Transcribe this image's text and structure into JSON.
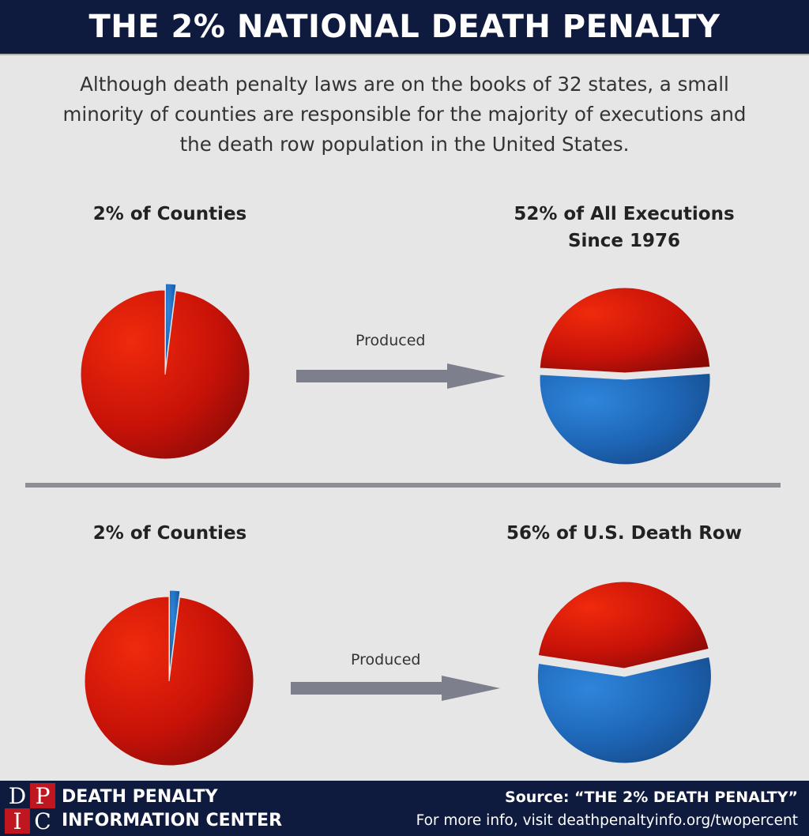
{
  "header": {
    "title": "THE 2% NATIONAL DEATH PENALTY"
  },
  "intro": {
    "line1": "Although death penalty laws are on the books of 32 states, a small",
    "line2": "minority of counties are responsible for the majority of executions and",
    "line3": "the death row population in the United States."
  },
  "arrow_label": "Produced",
  "colors": {
    "red": "#d8170a",
    "blue": "#1f6fc4",
    "arrow": "#7d7f8c",
    "header_bg": "#0f1a3f"
  },
  "chart_data": [
    {
      "type": "pie",
      "title": "2% of Counties",
      "series": [
        {
          "values": [
            2,
            98
          ]
        }
      ],
      "colors": [
        "#1f6fc4",
        "#d8170a"
      ],
      "exploded_slice": 0
    },
    {
      "type": "pie",
      "title_line1": "52% of All Executions",
      "title_line2": "Since 1976",
      "series": [
        {
          "values": [
            52,
            48
          ]
        }
      ],
      "colors": [
        "#1f6fc4",
        "#d8170a"
      ],
      "exploded_slice": 0
    },
    {
      "type": "pie",
      "title": "2% of Counties",
      "series": [
        {
          "values": [
            2,
            98
          ]
        }
      ],
      "colors": [
        "#1f6fc4",
        "#d8170a"
      ],
      "exploded_slice": 0
    },
    {
      "type": "pie",
      "title": "56% of U.S. Death Row",
      "series": [
        {
          "values": [
            56,
            44
          ]
        }
      ],
      "colors": [
        "#1f6fc4",
        "#d8170a"
      ],
      "exploded_slice": 0
    }
  ],
  "footer": {
    "logo_letters": [
      "D",
      "P",
      "I",
      "C"
    ],
    "org_line1": "DEATH PENALTY",
    "org_line2": "INFORMATION CENTER",
    "source_line1": "Source: “THE 2% DEATH PENALTY”",
    "source_line2": "For more info, visit deathpenaltyinfo.org/twopercent"
  }
}
